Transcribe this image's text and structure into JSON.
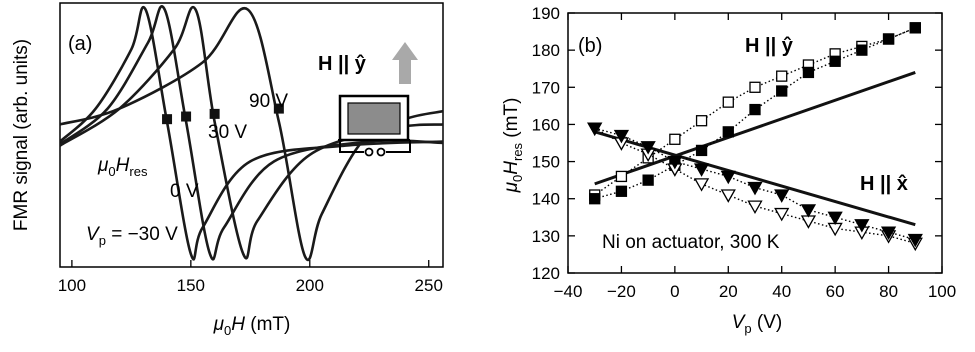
{
  "chart_data": [
    {
      "panel": "(a)",
      "type": "line",
      "xlabel": "μ0H (mT)",
      "xlabel_parts": {
        "mu": "μ",
        "sub": "0",
        "sym": "H",
        "unit": " (mT)"
      },
      "ylabel": "FMR signal (arb. units)",
      "xlim": [
        95,
        256
      ],
      "xticks": [
        100,
        150,
        200,
        250
      ],
      "ylim": [
        -1.0,
        1.0
      ],
      "yticks_shown": false,
      "series": [
        {
          "name": "Vp = −30 V",
          "resonance_mT": 140,
          "curve": [
            [
              95,
              -0.05
            ],
            [
              110,
              0.2
            ],
            [
              125,
              0.65
            ],
            [
              131,
              0.95
            ],
            [
              140,
              0.1
            ],
            [
              150,
              -0.9
            ],
            [
              155,
              -0.7
            ],
            [
              175,
              -0.2
            ],
            [
              215,
              -0.08
            ],
            [
              256,
              -0.05
            ]
          ]
        },
        {
          "name": "0 V",
          "resonance_mT": 148,
          "curve": [
            [
              95,
              -0.07
            ],
            [
              115,
              0.2
            ],
            [
              132,
              0.7
            ],
            [
              139,
              0.95
            ],
            [
              148,
              0.1
            ],
            [
              158,
              -0.9
            ],
            [
              164,
              -0.7
            ],
            [
              185,
              -0.2
            ],
            [
              225,
              -0.05
            ],
            [
              256,
              -0.06
            ]
          ]
        },
        {
          "name": "30 V",
          "resonance_mT": 160,
          "curve": [
            [
              95,
              -0.08
            ],
            [
              120,
              0.2
            ],
            [
              143,
              0.65
            ],
            [
              152,
              0.95
            ],
            [
              160,
              0.1
            ],
            [
              172,
              -0.9
            ],
            [
              178,
              -0.65
            ],
            [
              200,
              -0.15
            ],
            [
              235,
              0.05
            ],
            [
              256,
              0.08
            ]
          ]
        },
        {
          "name": "90 V",
          "resonance_mT": 187,
          "curve": [
            [
              95,
              0.08
            ],
            [
              120,
              0.2
            ],
            [
              155,
              0.55
            ],
            [
              174,
              0.95
            ],
            [
              187,
              0.1
            ],
            [
              198,
              -0.92
            ],
            [
              205,
              -0.6
            ],
            [
              222,
              -0.05
            ],
            [
              240,
              0.12
            ],
            [
              256,
              0.18
            ]
          ]
        }
      ],
      "markers": [
        {
          "x": 140,
          "y": 0.12
        },
        {
          "x": 148,
          "y": 0.14
        },
        {
          "x": 160,
          "y": 0.16
        },
        {
          "x": 187,
          "y": 0.2
        }
      ],
      "labels": {
        "panel": "(a)",
        "hres_mu": "μ",
        "hres_sub": "0",
        "hres_sym": "H",
        "hres_sub2": "res",
        "v90": "90 V",
        "v30": "30 V",
        "v0": "0 V",
        "vp_sym": "V",
        "vp_sub": "p",
        "vp_val": " = −30 V",
        "hfield": "H || ŷ"
      }
    },
    {
      "panel": "(b)",
      "type": "scatter",
      "xlabel": "Vp (V)",
      "xlabel_parts": {
        "sym": "V",
        "sub": "p",
        "unit": " (V)"
      },
      "ylabel": "μ0Hres (mT)",
      "ylabel_parts": {
        "mu": "μ",
        "sub": "0",
        "sym": "H",
        "sub2": "res",
        "unit": " (mT)"
      },
      "xlim": [
        -40,
        100
      ],
      "ylim": [
        120,
        190
      ],
      "xticks": [
        -40,
        -20,
        0,
        20,
        40,
        60,
        80,
        100
      ],
      "yticks": [
        120,
        130,
        140,
        150,
        160,
        170,
        180,
        190
      ],
      "series": [
        {
          "name": "H || ŷ",
          "marker": "open-square",
          "points": [
            [
              -30,
              141
            ],
            [
              -20,
              146
            ],
            [
              -10,
              151
            ],
            [
              0,
              156
            ],
            [
              10,
              161
            ],
            [
              20,
              166
            ],
            [
              30,
              170
            ],
            [
              40,
              173
            ],
            [
              50,
              176
            ],
            [
              60,
              179
            ],
            [
              70,
              181
            ],
            [
              80,
              183
            ],
            [
              90,
              186
            ]
          ]
        },
        {
          "name": "H || ŷ",
          "marker": "filled-square",
          "points": [
            [
              -30,
              140
            ],
            [
              -20,
              142
            ],
            [
              -10,
              145
            ],
            [
              0,
              149
            ],
            [
              10,
              153
            ],
            [
              20,
              158
            ],
            [
              30,
              164
            ],
            [
              40,
              169
            ],
            [
              50,
              174
            ],
            [
              60,
              177
            ],
            [
              70,
              180
            ],
            [
              80,
              183
            ],
            [
              90,
              186
            ]
          ]
        },
        {
          "name": "H || x̂",
          "marker": "open-triangle",
          "points": [
            [
              -30,
              159
            ],
            [
              -20,
              155
            ],
            [
              -10,
              152
            ],
            [
              0,
              148
            ],
            [
              10,
              144
            ],
            [
              20,
              141
            ],
            [
              30,
              138
            ],
            [
              40,
              136
            ],
            [
              50,
              134
            ],
            [
              60,
              132
            ],
            [
              70,
              131
            ],
            [
              80,
              130
            ],
            [
              90,
              128
            ]
          ]
        },
        {
          "name": "H || x̂",
          "marker": "filled-triangle",
          "points": [
            [
              -30,
              159
            ],
            [
              -20,
              157
            ],
            [
              -10,
              154
            ],
            [
              0,
              150
            ],
            [
              10,
              148
            ],
            [
              20,
              146
            ],
            [
              30,
              143
            ],
            [
              40,
              141
            ],
            [
              50,
              137
            ],
            [
              60,
              135
            ],
            [
              70,
              133
            ],
            [
              80,
              131
            ],
            [
              90,
              129
            ]
          ]
        }
      ],
      "fit_lines": [
        {
          "name": "H || ŷ",
          "points": [
            [
              -30,
              144
            ],
            [
              90,
              174
            ]
          ]
        },
        {
          "name": "H || x̂",
          "points": [
            [
              -30,
              158
            ],
            [
              90,
              133
            ]
          ]
        }
      ],
      "labels": {
        "panel": "(b)",
        "hy": "H || ŷ",
        "hx": "H || x̂",
        "sample": "Ni on actuator, 300 K"
      }
    }
  ]
}
